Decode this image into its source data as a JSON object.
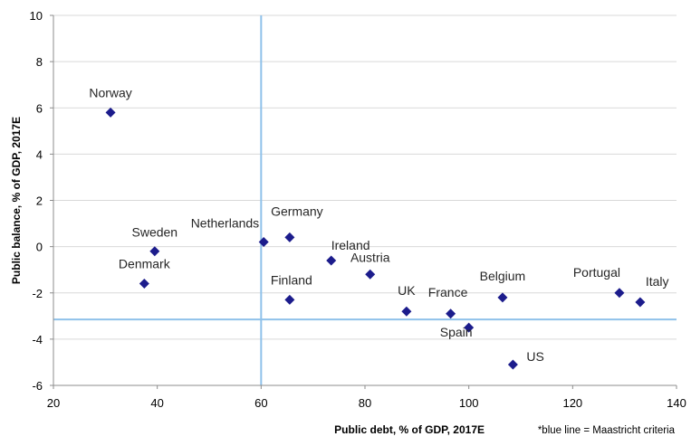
{
  "chart_data": {
    "type": "scatter",
    "xlabel": "Public debt, % of GDP, 2017E",
    "ylabel": "Public balance, % of GDP, 2017E",
    "note": "*blue line = Maastricht criteria",
    "xlim": [
      20,
      140
    ],
    "ylim": [
      -6,
      10
    ],
    "x_ticks": [
      20,
      40,
      60,
      80,
      100,
      120,
      140
    ],
    "y_ticks": [
      -6,
      -4,
      -2,
      0,
      2,
      4,
      6,
      8,
      10
    ],
    "grid": "horizontal",
    "marker": "diamond",
    "marker_color": "#1c1c8c",
    "reference_line_color": "#8fc1ea",
    "reference_lines": {
      "x": 60,
      "y": -3.15
    },
    "points": [
      {
        "label": "Norway",
        "x": 31,
        "y": 5.8
      },
      {
        "label": "Sweden",
        "x": 39.5,
        "y": -0.2
      },
      {
        "label": "Denmark",
        "x": 37.5,
        "y": -1.6
      },
      {
        "label": "Netherlands",
        "x": 60.5,
        "y": 0.2
      },
      {
        "label": "Germany",
        "x": 65.5,
        "y": 0.4
      },
      {
        "label": "Ireland",
        "x": 73.5,
        "y": -0.6
      },
      {
        "label": "Austria",
        "x": 81,
        "y": -1.2
      },
      {
        "label": "Finland",
        "x": 65.5,
        "y": -2.3
      },
      {
        "label": "UK",
        "x": 88,
        "y": -2.8
      },
      {
        "label": "France",
        "x": 96.5,
        "y": -2.9
      },
      {
        "label": "Spain",
        "x": 100,
        "y": -3.5
      },
      {
        "label": "Belgium",
        "x": 106.5,
        "y": -2.2
      },
      {
        "label": "US",
        "x": 108.5,
        "y": -5.1
      },
      {
        "label": "Portugal",
        "x": 129,
        "y": -2.0
      },
      {
        "label": "Italy",
        "x": 133,
        "y": -2.4
      }
    ]
  }
}
